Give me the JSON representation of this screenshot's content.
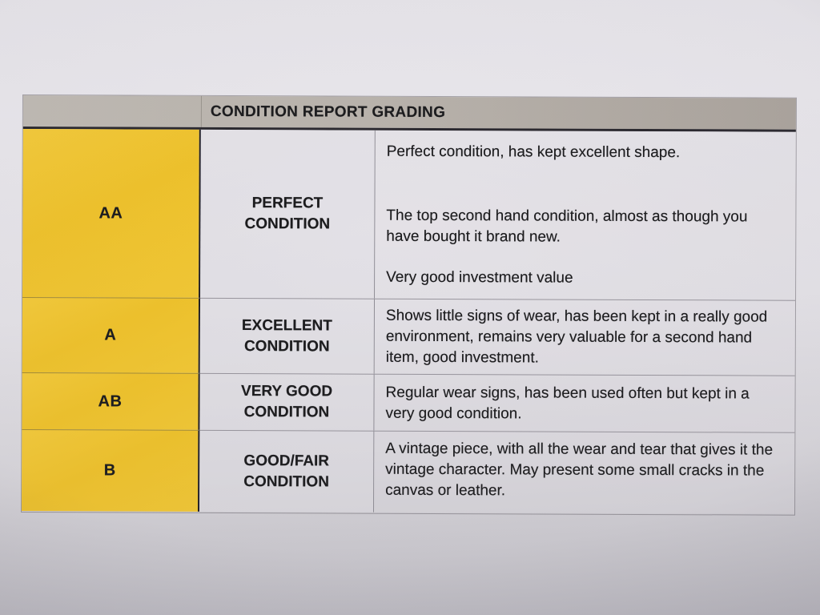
{
  "table": {
    "header": {
      "title": "CONDITION REPORT GRADING"
    },
    "colors": {
      "grade_column": "#efc22a",
      "header_bar": "#b5afa8",
      "cell_background": "#e0dee3",
      "text": "#1b1b1d"
    },
    "rows": [
      {
        "grade": "AA",
        "condition": "PERFECT CONDITION",
        "description": [
          "Perfect condition, has kept excellent shape.",
          "The top second hand condition, almost as though you have bought it brand new.",
          "Very good investment value"
        ]
      },
      {
        "grade": "A",
        "condition": "EXCELLENT CONDITION",
        "description": [
          "Shows little signs of wear, has been kept in a really good environment, remains very valuable for a second hand item, good investment."
        ]
      },
      {
        "grade": "AB",
        "condition": "VERY GOOD CONDITION",
        "description": [
          "Regular wear signs, has been used often but kept in a very good condition."
        ]
      },
      {
        "grade": "B",
        "condition": "GOOD/FAIR CONDITION",
        "description": [
          "A vintage piece, with all the wear and tear that gives it the vintage character. May present some small cracks in the canvas or leather."
        ]
      }
    ]
  }
}
